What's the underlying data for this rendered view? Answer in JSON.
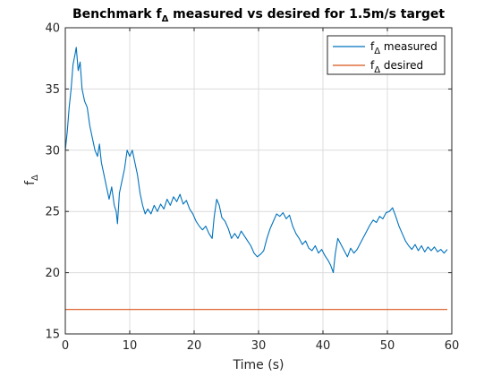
{
  "chart_data": {
    "type": "line",
    "title": {
      "before": "Benchmark f",
      "subscript": "Δ",
      "after": " measured vs desired for 1.5m/s target"
    },
    "xlabel": "Time (s)",
    "ylabel": {
      "base": "f",
      "subscript": "Δ"
    },
    "xlim": [
      0,
      60
    ],
    "ylim": [
      15,
      40
    ],
    "xticks": [
      0,
      10,
      20,
      30,
      40,
      50,
      60
    ],
    "yticks": [
      15,
      20,
      25,
      30,
      35,
      40
    ],
    "grid": true,
    "legend_position": "top-right",
    "series": [
      {
        "name_base": "f",
        "name_subscript": "Δ",
        "name_after": " measured",
        "color": "#0072BD",
        "points": [
          [
            0,
            30.0
          ],
          [
            0.3,
            31.5
          ],
          [
            0.6,
            33.5
          ],
          [
            0.9,
            35.0
          ],
          [
            1.2,
            37.0
          ],
          [
            1.5,
            37.8
          ],
          [
            1.7,
            38.4
          ],
          [
            2.0,
            36.5
          ],
          [
            2.3,
            37.2
          ],
          [
            2.6,
            35.0
          ],
          [
            3.0,
            34.0
          ],
          [
            3.4,
            33.5
          ],
          [
            3.8,
            32.0
          ],
          [
            4.2,
            31.0
          ],
          [
            4.6,
            30.0
          ],
          [
            5.0,
            29.5
          ],
          [
            5.3,
            30.5
          ],
          [
            5.6,
            29.0
          ],
          [
            6.0,
            28.0
          ],
          [
            6.4,
            27.0
          ],
          [
            6.8,
            26.0
          ],
          [
            7.2,
            27.0
          ],
          [
            7.6,
            25.5
          ],
          [
            7.9,
            25.0
          ],
          [
            8.1,
            24.0
          ],
          [
            8.4,
            26.5
          ],
          [
            8.8,
            27.5
          ],
          [
            9.2,
            28.5
          ],
          [
            9.6,
            30.0
          ],
          [
            10.0,
            29.5
          ],
          [
            10.4,
            30.0
          ],
          [
            10.8,
            29.0
          ],
          [
            11.2,
            28.0
          ],
          [
            11.6,
            26.5
          ],
          [
            12.0,
            25.5
          ],
          [
            12.4,
            24.8
          ],
          [
            12.8,
            25.2
          ],
          [
            13.3,
            24.8
          ],
          [
            13.8,
            25.5
          ],
          [
            14.3,
            25.0
          ],
          [
            14.8,
            25.6
          ],
          [
            15.3,
            25.2
          ],
          [
            15.8,
            26.0
          ],
          [
            16.3,
            25.5
          ],
          [
            16.8,
            26.2
          ],
          [
            17.3,
            25.8
          ],
          [
            17.8,
            26.4
          ],
          [
            18.3,
            25.6
          ],
          [
            18.8,
            25.9
          ],
          [
            19.3,
            25.2
          ],
          [
            19.8,
            24.8
          ],
          [
            20.3,
            24.2
          ],
          [
            20.8,
            23.8
          ],
          [
            21.3,
            23.5
          ],
          [
            21.8,
            23.8
          ],
          [
            22.3,
            23.2
          ],
          [
            22.8,
            22.8
          ],
          [
            23.1,
            24.5
          ],
          [
            23.5,
            26.0
          ],
          [
            23.9,
            25.5
          ],
          [
            24.3,
            24.5
          ],
          [
            24.8,
            24.2
          ],
          [
            25.3,
            23.6
          ],
          [
            25.8,
            22.8
          ],
          [
            26.3,
            23.2
          ],
          [
            26.8,
            22.8
          ],
          [
            27.3,
            23.4
          ],
          [
            27.8,
            23.0
          ],
          [
            28.3,
            22.6
          ],
          [
            28.8,
            22.2
          ],
          [
            29.3,
            21.6
          ],
          [
            29.8,
            21.3
          ],
          [
            30.3,
            21.5
          ],
          [
            30.8,
            21.8
          ],
          [
            31.3,
            22.8
          ],
          [
            31.8,
            23.6
          ],
          [
            32.3,
            24.2
          ],
          [
            32.8,
            24.8
          ],
          [
            33.3,
            24.6
          ],
          [
            33.8,
            24.9
          ],
          [
            34.3,
            24.4
          ],
          [
            34.8,
            24.7
          ],
          [
            35.3,
            23.8
          ],
          [
            35.8,
            23.2
          ],
          [
            36.3,
            22.8
          ],
          [
            36.8,
            22.3
          ],
          [
            37.3,
            22.6
          ],
          [
            37.8,
            22.0
          ],
          [
            38.3,
            21.8
          ],
          [
            38.8,
            22.2
          ],
          [
            39.3,
            21.6
          ],
          [
            39.8,
            21.9
          ],
          [
            40.3,
            21.4
          ],
          [
            40.8,
            21.0
          ],
          [
            41.2,
            20.6
          ],
          [
            41.6,
            20.0
          ],
          [
            41.9,
            21.5
          ],
          [
            42.3,
            22.8
          ],
          [
            42.8,
            22.3
          ],
          [
            43.3,
            21.8
          ],
          [
            43.8,
            21.3
          ],
          [
            44.3,
            22.0
          ],
          [
            44.8,
            21.6
          ],
          [
            45.3,
            21.9
          ],
          [
            45.8,
            22.4
          ],
          [
            46.3,
            22.9
          ],
          [
            46.8,
            23.4
          ],
          [
            47.3,
            23.9
          ],
          [
            47.8,
            24.3
          ],
          [
            48.3,
            24.1
          ],
          [
            48.8,
            24.6
          ],
          [
            49.3,
            24.4
          ],
          [
            49.8,
            24.9
          ],
          [
            50.3,
            25.0
          ],
          [
            50.8,
            25.3
          ],
          [
            51.3,
            24.6
          ],
          [
            51.8,
            23.8
          ],
          [
            52.3,
            23.2
          ],
          [
            52.8,
            22.6
          ],
          [
            53.3,
            22.2
          ],
          [
            53.8,
            21.9
          ],
          [
            54.3,
            22.3
          ],
          [
            54.8,
            21.8
          ],
          [
            55.3,
            22.2
          ],
          [
            55.8,
            21.7
          ],
          [
            56.3,
            22.1
          ],
          [
            56.8,
            21.8
          ],
          [
            57.3,
            22.1
          ],
          [
            57.8,
            21.7
          ],
          [
            58.3,
            21.9
          ],
          [
            58.8,
            21.6
          ],
          [
            59.3,
            21.9
          ]
        ]
      },
      {
        "name_base": "f",
        "name_subscript": "Δ",
        "name_after": " desired",
        "color": "#D95319",
        "points": [
          [
            0,
            17
          ],
          [
            59.3,
            17
          ]
        ]
      }
    ]
  }
}
